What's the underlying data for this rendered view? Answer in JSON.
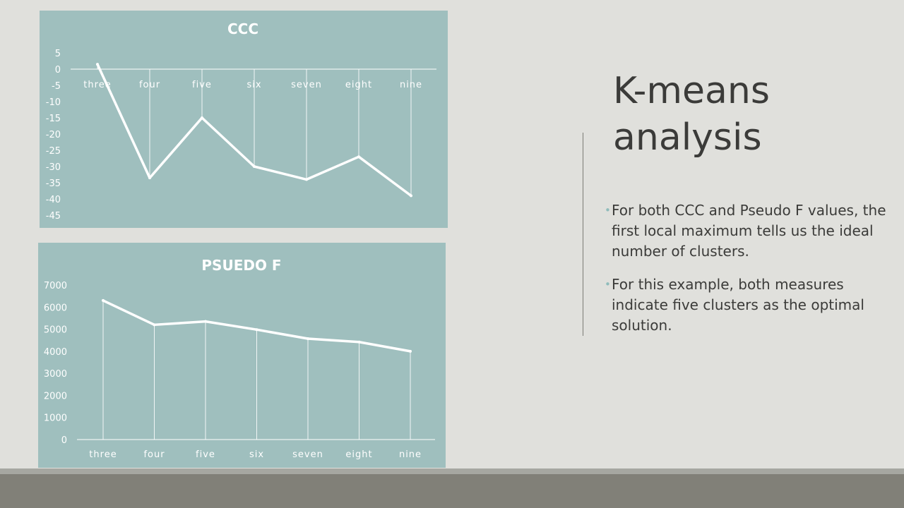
{
  "slide": {
    "title": "K-means analysis",
    "bullets": [
      "For both CCC and Pseudo F values, the first local maximum tells us the ideal number of clusters.",
      " For this example, both measures indicate five clusters as the optimal solution."
    ]
  },
  "colors": {
    "background": "#e0e0dc",
    "chart_panel": "#9fbfbe",
    "line": "#ffffff",
    "text": "#3b3b39",
    "bullet": "#8fbcbb",
    "footer": "#818078"
  },
  "chart_data": [
    {
      "type": "line",
      "title": "CCC",
      "categories": [
        "three",
        "four",
        "five",
        "six",
        "seven",
        "eight",
        "nine"
      ],
      "series": [
        {
          "values": [
            1.5,
            -33.5,
            -15,
            -30,
            -34,
            -27,
            -39
          ]
        }
      ],
      "ylim": [
        -45,
        5
      ],
      "yticks": [
        "5",
        "0",
        "-5",
        "-10",
        "-15",
        "-20",
        "-25",
        "-30",
        "-35",
        "-40",
        "-45"
      ],
      "xlabel": "",
      "ylabel": "",
      "grid": "vertical drop lines",
      "legend": "none"
    },
    {
      "type": "line",
      "title": "PSUEDO F",
      "categories": [
        "three",
        "four",
        "five",
        "six",
        "seven",
        "eight",
        "nine"
      ],
      "series": [
        {
          "values": [
            6300,
            5200,
            5350,
            4980,
            4570,
            4420,
            4000
          ]
        }
      ],
      "ylim": [
        0,
        7000
      ],
      "yticks": [
        "7000",
        "6000",
        "5000",
        "4000",
        "3000",
        "2000",
        "1000",
        "0"
      ],
      "xlabel": "",
      "ylabel": "",
      "grid": "vertical drop lines",
      "legend": "none"
    }
  ]
}
